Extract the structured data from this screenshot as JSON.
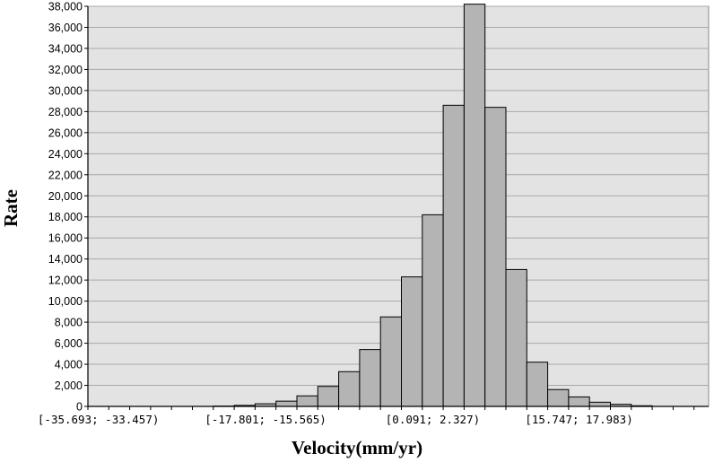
{
  "chart_data": {
    "type": "bar",
    "title": "",
    "xlabel": "Velocity(mm/yr)",
    "ylabel": "Rate",
    "ylim": [
      0,
      38000
    ],
    "y_ticks": [
      0,
      2000,
      4000,
      6000,
      8000,
      10000,
      12000,
      14000,
      16000,
      18000,
      20000,
      22000,
      24000,
      26000,
      28000,
      30000,
      32000,
      34000,
      36000,
      38000
    ],
    "y_tick_labels": [
      "0",
      "2,000",
      "4,000",
      "6,000",
      "8,000",
      "10,000",
      "12,000",
      "14,000",
      "16,000",
      "18,000",
      "20,000",
      "22,000",
      "24,000",
      "26,000",
      "28,000",
      "30,000",
      "32,000",
      "34,000",
      "36,000",
      "38,000"
    ],
    "x_tick_labels": [
      {
        "label": "[-35.693; -33.457)",
        "bin": 0
      },
      {
        "label": "[-17.801; -15.565)",
        "bin": 8
      },
      {
        "label": "[0.091; 2.327)",
        "bin": 16
      },
      {
        "label": "[15.747; 17.983)",
        "bin": 23
      }
    ],
    "bin_count": 30,
    "values": [
      0,
      0,
      0,
      0,
      0,
      0,
      30,
      100,
      250,
      500,
      1000,
      1900,
      3300,
      5400,
      8500,
      12300,
      18200,
      28600,
      38200,
      28400,
      13000,
      4200,
      1600,
      900,
      400,
      200,
      60,
      0,
      0,
      0
    ],
    "grid": true,
    "colors": {
      "plot_bg": "#e3e3e3",
      "bar_fill": "#b4b4b4",
      "bar_stroke": "#000000",
      "grid": "#a8a8a8"
    }
  }
}
